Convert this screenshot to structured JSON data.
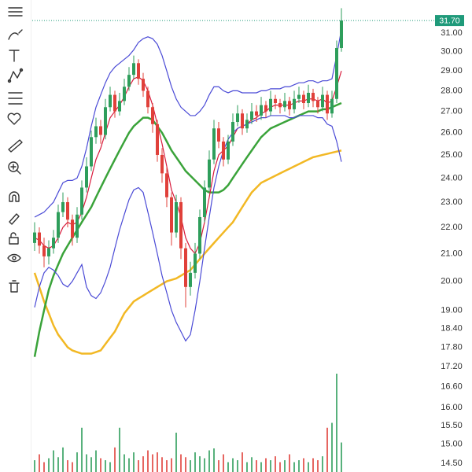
{
  "chart_data": {
    "type": "candlestick",
    "log_scale": true,
    "grid": false,
    "ylim": [
      14.28,
      32.87
    ],
    "yticks": [
      {
        "value": 31,
        "label": "31.00"
      },
      {
        "value": 30,
        "label": "30.00"
      },
      {
        "value": 29,
        "label": "29.00"
      },
      {
        "value": 28,
        "label": "28.00"
      },
      {
        "value": 27,
        "label": "27.00"
      },
      {
        "value": 26,
        "label": "26.00"
      },
      {
        "value": 25,
        "label": "25.00"
      },
      {
        "value": 24,
        "label": "24.00"
      },
      {
        "value": 23,
        "label": "23.00"
      },
      {
        "value": 22,
        "label": "22.00"
      },
      {
        "value": 21,
        "label": "21.00"
      },
      {
        "value": 20,
        "label": "20.00"
      },
      {
        "value": 19,
        "label": "19.00"
      },
      {
        "value": 18.4,
        "label": "18.40"
      },
      {
        "value": 17.8,
        "label": "17.80"
      },
      {
        "value": 17.2,
        "label": "17.20"
      },
      {
        "value": 16.6,
        "label": "16.60"
      },
      {
        "value": 16,
        "label": "16.00"
      },
      {
        "value": 15.5,
        "label": "15.50"
      },
      {
        "value": 15,
        "label": "15.00"
      },
      {
        "value": 14.5,
        "label": "14.50"
      }
    ],
    "last_price": 31.7,
    "last_price_label": "31.70",
    "last_price_color": "#1f9a7a",
    "up_color": "#2e9e5b",
    "down_color": "#e0403a",
    "open": [
      21.4,
      21.8,
      21.3,
      20.9,
      21.2,
      21.6,
      22.6,
      23.0,
      22.3,
      21.6,
      22.5,
      23.6,
      24.5,
      25.8,
      26.3,
      25.9,
      27.2,
      27.8,
      27.0,
      27.5,
      28.2,
      28.8,
      29.4,
      28.6,
      28.0,
      27.2,
      26.4,
      25.0,
      24.2,
      23.2,
      21.8,
      23.0,
      21.2,
      19.8,
      20.3,
      21.0,
      22.4,
      23.6,
      24.8,
      26.2,
      25.6,
      24.8,
      25.6,
      26.5,
      26.9,
      26.2,
      26.6,
      27.0,
      26.8,
      27.3,
      27.0,
      27.6,
      27.4,
      27.2,
      27.5,
      27.1,
      27.6,
      27.8,
      27.4,
      27.9,
      27.5,
      27.2,
      27.8,
      26.9,
      27.6,
      30.2
    ],
    "high": [
      22.2,
      22.0,
      21.6,
      21.5,
      21.9,
      22.9,
      23.4,
      23.2,
      22.5,
      22.8,
      23.9,
      24.9,
      26.1,
      26.7,
      26.6,
      27.6,
      28.2,
      28.0,
      27.9,
      28.6,
      29.2,
      29.8,
      29.6,
      28.9,
      28.2,
      27.4,
      26.6,
      25.3,
      24.5,
      23.4,
      23.3,
      23.2,
      21.4,
      20.7,
      21.4,
      22.7,
      23.9,
      25.2,
      26.6,
      26.5,
      25.8,
      25.9,
      26.9,
      27.3,
      27.1,
      26.9,
      27.4,
      27.3,
      27.7,
      27.5,
      28.0,
      27.8,
      27.6,
      27.9,
      27.7,
      28.0,
      28.2,
      28.0,
      28.3,
      28.1,
      27.7,
      28.2,
      28.0,
      28.0,
      30.6,
      32.4
    ],
    "low": [
      21.1,
      21.0,
      20.5,
      20.6,
      21.0,
      21.4,
      22.4,
      22.0,
      21.3,
      21.4,
      22.3,
      23.4,
      24.3,
      25.5,
      25.5,
      25.7,
      27.0,
      26.7,
      26.8,
      27.3,
      28.0,
      28.6,
      28.3,
      27.7,
      26.9,
      26.0,
      24.7,
      23.8,
      22.8,
      21.3,
      21.6,
      20.8,
      19.1,
      19.5,
      20.1,
      20.8,
      22.2,
      23.4,
      24.6,
      25.3,
      24.5,
      24.6,
      25.4,
      26.3,
      25.9,
      26.0,
      26.4,
      26.5,
      26.6,
      26.7,
      26.8,
      27.1,
      26.9,
      27.0,
      26.8,
      26.9,
      27.4,
      27.1,
      27.2,
      27.2,
      26.9,
      27.0,
      26.6,
      26.7,
      27.4,
      30.0
    ],
    "close": [
      21.8,
      21.3,
      20.9,
      21.2,
      21.6,
      22.6,
      23.0,
      22.3,
      21.6,
      22.5,
      23.6,
      24.5,
      25.8,
      26.3,
      25.9,
      27.2,
      27.8,
      27.0,
      27.5,
      28.2,
      28.8,
      29.4,
      28.6,
      28.0,
      27.2,
      26.4,
      25.0,
      24.2,
      23.2,
      21.8,
      23.0,
      21.2,
      19.8,
      20.3,
      21.0,
      22.4,
      23.6,
      24.8,
      26.2,
      25.6,
      24.8,
      25.6,
      26.5,
      26.9,
      26.2,
      26.6,
      27.0,
      26.8,
      27.3,
      27.0,
      27.6,
      27.4,
      27.2,
      27.5,
      27.1,
      27.6,
      27.8,
      27.4,
      27.9,
      27.5,
      27.2,
      27.8,
      26.9,
      27.6,
      30.2,
      31.7
    ],
    "volume": [
      12,
      18,
      10,
      14,
      22,
      15,
      25,
      12,
      10,
      20,
      45,
      18,
      15,
      22,
      14,
      12,
      10,
      25,
      45,
      18,
      14,
      20,
      12,
      16,
      22,
      18,
      20,
      15,
      12,
      14,
      40,
      18,
      15,
      12,
      20,
      16,
      14,
      22,
      24,
      12,
      18,
      10,
      14,
      12,
      20,
      10,
      15,
      12,
      10,
      14,
      12,
      16,
      10,
      12,
      18,
      10,
      12,
      14,
      10,
      14,
      12,
      16,
      45,
      50,
      100,
      30
    ],
    "lines": [
      {
        "color": "#f2b824",
        "values": [
          20.3,
          19.8,
          19.3,
          18.9,
          18.5,
          18.2,
          18.0,
          17.8,
          17.7,
          17.65,
          17.6,
          17.6,
          17.6,
          17.65,
          17.7,
          17.9,
          18.1,
          18.3,
          18.6,
          18.9,
          19.1,
          19.3,
          19.4,
          19.5,
          19.6,
          19.7,
          19.8,
          19.9,
          20.0,
          20.05,
          20.1,
          20.2,
          20.3,
          20.4,
          20.6,
          20.8,
          21.0,
          21.2,
          21.4,
          21.6,
          21.8,
          22.0,
          22.2,
          22.5,
          22.8,
          23.1,
          23.4,
          23.6,
          23.8,
          23.9,
          24.0,
          24.1,
          24.2,
          24.3,
          24.4,
          24.5,
          24.6,
          24.7,
          24.8,
          24.9,
          24.95,
          25.0,
          25.05,
          25.1,
          25.15,
          25.2
        ]
      },
      {
        "color": "#3aa33a",
        "values": [
          17.5,
          18.3,
          19.0,
          19.7,
          20.2,
          20.6,
          21.0,
          21.3,
          21.6,
          21.9,
          22.2,
          22.5,
          22.8,
          23.2,
          23.6,
          24.0,
          24.4,
          24.8,
          25.2,
          25.6,
          26.0,
          26.3,
          26.5,
          26.7,
          26.7,
          26.6,
          26.3,
          26.0,
          25.6,
          25.2,
          24.9,
          24.6,
          24.3,
          24.1,
          23.9,
          23.7,
          23.5,
          23.4,
          23.4,
          23.4,
          23.5,
          23.7,
          24.0,
          24.3,
          24.6,
          24.9,
          25.2,
          25.5,
          25.8,
          26.0,
          26.2,
          26.3,
          26.4,
          26.5,
          26.6,
          26.7,
          26.8,
          26.9,
          27.0,
          27.0,
          27.0,
          27.1,
          27.1,
          27.2,
          27.3,
          27.4
        ]
      },
      {
        "color": "#d81b3c",
        "values": [
          21.6,
          21.5,
          21.3,
          21.2,
          21.3,
          21.6,
          22.0,
          22.2,
          22.1,
          22.2,
          22.6,
          23.2,
          24.0,
          24.8,
          25.3,
          26.0,
          26.7,
          27.0,
          27.3,
          27.7,
          28.2,
          28.6,
          28.7,
          28.5,
          28.0,
          27.3,
          26.4,
          25.5,
          24.5,
          23.5,
          23.0,
          22.4,
          21.6,
          21.2,
          21.0,
          21.4,
          22.2,
          23.2,
          24.3,
          25.0,
          25.2,
          25.4,
          25.8,
          26.2,
          26.3,
          26.4,
          26.6,
          26.7,
          26.9,
          27.0,
          27.2,
          27.3,
          27.3,
          27.3,
          27.3,
          27.4,
          27.5,
          27.5,
          27.6,
          27.6,
          27.5,
          27.6,
          27.4,
          27.5,
          28.2,
          29.0
        ]
      },
      {
        "color": "#4a4ad6",
        "values": [
          22.4,
          22.5,
          22.6,
          22.8,
          23.0,
          23.4,
          23.8,
          23.9,
          23.9,
          24.0,
          24.5,
          25.3,
          26.3,
          27.2,
          27.8,
          28.4,
          28.9,
          29.2,
          29.4,
          29.6,
          29.8,
          30.1,
          30.5,
          30.7,
          30.8,
          30.7,
          30.4,
          29.8,
          29.0,
          28.2,
          27.6,
          27.2,
          27.0,
          26.8,
          26.8,
          27.0,
          27.3,
          27.8,
          28.2,
          28.2,
          28.0,
          27.9,
          28.0,
          28.0,
          27.9,
          27.9,
          27.9,
          27.9,
          28.0,
          28.0,
          28.1,
          28.1,
          28.1,
          28.2,
          28.2,
          28.3,
          28.4,
          28.4,
          28.5,
          28.5,
          28.4,
          28.5,
          28.5,
          28.6,
          29.8,
          31.2
        ]
      },
      {
        "color": "#4a4ad6",
        "values": [
          19.1,
          19.8,
          20.3,
          20.5,
          20.4,
          20.2,
          19.9,
          19.8,
          20.0,
          20.3,
          20.6,
          19.8,
          19.5,
          19.4,
          19.6,
          20.0,
          20.5,
          21.2,
          21.9,
          22.5,
          23.1,
          23.5,
          23.6,
          23.4,
          22.6,
          21.8,
          21.0,
          20.2,
          19.6,
          19.0,
          18.6,
          18.3,
          18.0,
          18.2,
          19.0,
          20.0,
          21.2,
          22.4,
          23.6,
          24.5,
          25.2,
          25.7,
          26.0,
          26.2,
          26.3,
          26.4,
          26.5,
          26.6,
          26.7,
          26.7,
          26.8,
          26.8,
          26.8,
          26.8,
          26.7,
          26.7,
          26.8,
          26.8,
          26.8,
          26.8,
          26.7,
          26.7,
          26.4,
          26.3,
          25.6,
          24.7
        ]
      }
    ]
  }
}
